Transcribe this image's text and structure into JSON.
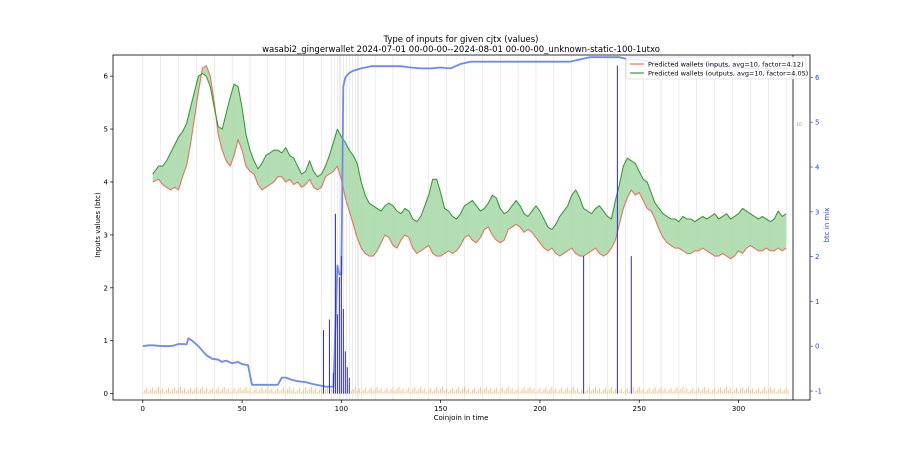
{
  "chart_data": {
    "type": "line",
    "title": "Type of inputs for given cjtx (values)",
    "subtitle": "wasabi2_gingerwallet 2024-07-01 00-00-00--2024-08-01 00-00-00_unknown-static-100-1utxo",
    "xlabel": "Coinjoin in time",
    "ylabel": "Inputs values (btc)",
    "ylabel_right": "btc in mix",
    "xlim": [
      -15,
      336
    ],
    "ylim": [
      -0.12,
      6.4
    ],
    "ylim_right": [
      -1.2,
      6.5
    ],
    "x_ticks": [
      0,
      50,
      100,
      150,
      200,
      250,
      300
    ],
    "y_ticks": [
      0,
      1,
      2,
      3,
      4,
      5,
      6
    ],
    "y_ticks_right": [
      -1,
      0,
      1,
      2,
      3,
      4,
      5,
      6
    ],
    "right_small_label": "10",
    "legend_position": "top-right",
    "colors": {
      "inputs": "#e8735f",
      "outputs": "#3a9a3a",
      "fill": "#a6d8a6",
      "mix": "#6f8be8",
      "spikes": "#2b2bd6",
      "tiny_bars": "#f0b76a",
      "vgrid": "#d9d9d9"
    },
    "series": [
      {
        "name": "Predicted wallets (inputs, avg=10, factor=4.12)",
        "x": [
          5,
          8,
          10,
          12,
          14,
          16,
          18,
          20,
          22,
          24,
          26,
          28,
          30,
          32,
          34,
          36,
          38,
          40,
          42,
          44,
          46,
          48,
          50,
          52,
          54,
          56,
          58,
          60,
          62,
          64,
          66,
          68,
          70,
          72,
          74,
          76,
          78,
          80,
          82,
          84,
          86,
          88,
          90,
          92,
          94,
          96,
          98,
          100,
          102,
          104,
          106,
          108,
          110,
          112,
          114,
          116,
          118,
          120,
          122,
          124,
          126,
          128,
          130,
          132,
          134,
          136,
          138,
          140,
          142,
          144,
          146,
          148,
          150,
          152,
          154,
          156,
          158,
          160,
          162,
          164,
          166,
          168,
          170,
          172,
          174,
          176,
          178,
          180,
          182,
          184,
          186,
          188,
          190,
          192,
          194,
          196,
          198,
          200,
          202,
          204,
          206,
          208,
          210,
          212,
          214,
          216,
          218,
          220,
          222,
          224,
          226,
          228,
          230,
          232,
          234,
          236,
          238,
          240,
          242,
          244,
          246,
          248,
          250,
          252,
          254,
          256,
          258,
          260,
          262,
          264,
          266,
          268,
          270,
          272,
          274,
          276,
          278,
          280,
          282,
          284,
          286,
          288,
          290,
          292,
          294,
          296,
          298,
          300,
          302,
          304,
          306,
          308,
          310,
          312,
          314,
          316,
          318,
          320,
          322,
          324
        ],
        "values": [
          4.0,
          4.05,
          3.95,
          3.9,
          3.85,
          3.9,
          3.85,
          4.1,
          4.3,
          4.7,
          5.2,
          5.7,
          6.15,
          6.2,
          6.0,
          5.5,
          4.9,
          4.6,
          4.4,
          4.3,
          4.5,
          4.8,
          4.6,
          4.3,
          4.2,
          4.15,
          3.95,
          3.85,
          3.9,
          3.95,
          4.0,
          4.1,
          4.1,
          4.0,
          4.05,
          3.95,
          4.0,
          3.9,
          3.95,
          4.05,
          3.9,
          3.85,
          3.9,
          4.1,
          4.15,
          4.2,
          4.3,
          4.05,
          3.7,
          3.45,
          3.2,
          2.95,
          2.75,
          2.65,
          2.6,
          2.6,
          2.7,
          2.85,
          3.0,
          2.95,
          2.8,
          2.75,
          2.9,
          3.0,
          2.95,
          2.75,
          2.65,
          2.7,
          2.75,
          2.8,
          2.65,
          2.6,
          2.6,
          2.65,
          2.7,
          2.65,
          2.7,
          2.8,
          2.95,
          3.0,
          2.9,
          2.85,
          2.95,
          3.1,
          3.15,
          3.0,
          2.9,
          2.85,
          2.9,
          3.1,
          3.15,
          3.2,
          3.15,
          3.05,
          3.1,
          3.05,
          2.95,
          2.85,
          2.75,
          2.7,
          2.75,
          2.65,
          2.6,
          2.65,
          2.7,
          2.75,
          2.65,
          2.6,
          2.6,
          2.65,
          2.7,
          2.75,
          2.65,
          2.6,
          2.65,
          2.75,
          2.9,
          3.2,
          3.5,
          3.7,
          3.85,
          3.75,
          3.8,
          3.65,
          3.5,
          3.45,
          3.3,
          3.1,
          2.95,
          2.85,
          2.8,
          2.75,
          2.75,
          2.7,
          2.65,
          2.65,
          2.7,
          2.7,
          2.75,
          2.7,
          2.65,
          2.6,
          2.6,
          2.65,
          2.6,
          2.55,
          2.6,
          2.7,
          2.65,
          2.75,
          2.8,
          2.75,
          2.7,
          2.7,
          2.75,
          2.7,
          2.7,
          2.75,
          2.7,
          2.75
        ]
      },
      {
        "name": "Predicted wallets (outputs, avg=10, factor=4.05)",
        "x": [
          5,
          8,
          10,
          12,
          14,
          16,
          18,
          20,
          22,
          24,
          26,
          28,
          30,
          32,
          34,
          36,
          38,
          40,
          42,
          44,
          46,
          48,
          50,
          52,
          54,
          56,
          58,
          60,
          62,
          64,
          66,
          68,
          70,
          72,
          74,
          76,
          78,
          80,
          82,
          84,
          86,
          88,
          90,
          92,
          94,
          96,
          98,
          100,
          102,
          104,
          106,
          108,
          110,
          112,
          114,
          116,
          118,
          120,
          122,
          124,
          126,
          128,
          130,
          132,
          134,
          136,
          138,
          140,
          142,
          144,
          146,
          148,
          150,
          152,
          154,
          156,
          158,
          160,
          162,
          164,
          166,
          168,
          170,
          172,
          174,
          176,
          178,
          180,
          182,
          184,
          186,
          188,
          190,
          192,
          194,
          196,
          198,
          200,
          202,
          204,
          206,
          208,
          210,
          212,
          214,
          216,
          218,
          220,
          222,
          224,
          226,
          228,
          230,
          232,
          234,
          236,
          238,
          240,
          242,
          244,
          246,
          248,
          250,
          252,
          254,
          256,
          258,
          260,
          262,
          264,
          266,
          268,
          270,
          272,
          274,
          276,
          278,
          280,
          282,
          284,
          286,
          288,
          290,
          292,
          294,
          296,
          298,
          300,
          302,
          304,
          306,
          308,
          310,
          312,
          314,
          316,
          318,
          320,
          322,
          324
        ],
        "values": [
          4.15,
          4.3,
          4.3,
          4.4,
          4.55,
          4.7,
          4.85,
          4.95,
          5.1,
          5.4,
          5.7,
          6.0,
          6.05,
          6.0,
          5.8,
          5.4,
          5.05,
          5.0,
          5.3,
          5.6,
          5.85,
          5.8,
          5.4,
          4.9,
          4.6,
          4.4,
          4.25,
          4.35,
          4.5,
          4.55,
          4.6,
          4.6,
          4.55,
          4.65,
          4.5,
          4.45,
          4.3,
          4.15,
          4.2,
          4.4,
          4.2,
          4.1,
          4.15,
          4.3,
          4.5,
          4.75,
          5.0,
          4.85,
          4.75,
          4.6,
          4.5,
          4.35,
          4.0,
          3.75,
          3.6,
          3.55,
          3.5,
          3.45,
          3.55,
          3.6,
          3.55,
          3.45,
          3.4,
          3.5,
          3.45,
          3.3,
          3.25,
          3.35,
          3.55,
          3.75,
          4.05,
          4.05,
          3.8,
          3.5,
          3.45,
          3.35,
          3.3,
          3.4,
          3.55,
          3.6,
          3.65,
          3.55,
          3.45,
          3.5,
          3.6,
          3.75,
          3.7,
          3.5,
          3.4,
          3.45,
          3.55,
          3.65,
          3.55,
          3.4,
          3.35,
          3.45,
          3.55,
          3.45,
          3.3,
          3.15,
          3.1,
          3.2,
          3.35,
          3.45,
          3.55,
          3.75,
          3.85,
          3.7,
          3.5,
          3.45,
          3.4,
          3.5,
          3.55,
          3.45,
          3.35,
          3.3,
          3.65,
          3.95,
          4.3,
          4.45,
          4.4,
          4.35,
          4.2,
          4.05,
          4.0,
          3.8,
          3.6,
          3.5,
          3.4,
          3.35,
          3.3,
          3.3,
          3.25,
          3.35,
          3.3,
          3.3,
          3.25,
          3.3,
          3.35,
          3.3,
          3.35,
          3.4,
          3.3,
          3.35,
          3.4,
          3.3,
          3.35,
          3.4,
          3.5,
          3.45,
          3.4,
          3.35,
          3.3,
          3.35,
          3.3,
          3.25,
          3.3,
          3.45,
          3.35,
          3.4
        ]
      },
      {
        "axis": "right",
        "x": [
          0,
          3,
          5,
          8,
          12,
          15,
          18,
          20,
          22,
          23,
          25,
          28,
          30,
          32,
          35,
          38,
          40,
          42,
          45,
          48,
          50,
          53,
          55,
          58,
          60,
          63,
          66,
          68,
          70,
          72,
          75,
          78,
          82,
          86,
          90,
          92,
          94,
          96,
          97,
          98,
          99,
          100,
          101,
          102,
          104,
          106,
          110,
          115,
          120,
          125,
          130,
          135,
          140,
          145,
          150,
          155,
          160,
          165,
          170,
          175,
          180,
          185,
          190,
          195,
          200,
          205,
          210,
          215,
          220,
          225,
          230,
          235,
          240,
          245,
          250,
          255,
          260,
          265,
          270,
          275,
          280,
          285,
          290,
          295,
          300,
          305,
          310,
          315,
          320,
          325
        ],
        "values": [
          0.0,
          0.02,
          0.02,
          0.01,
          0.0,
          0.01,
          0.05,
          0.05,
          0.04,
          0.18,
          0.12,
          0.0,
          -0.1,
          -0.2,
          -0.28,
          -0.3,
          -0.35,
          -0.32,
          -0.38,
          -0.35,
          -0.4,
          -0.42,
          -0.86,
          -0.86,
          -0.86,
          -0.86,
          -0.86,
          -0.86,
          -0.7,
          -0.7,
          -0.75,
          -0.78,
          -0.8,
          -0.85,
          -0.88,
          -0.9,
          -0.9,
          -0.9,
          0.4,
          1.8,
          1.6,
          1.6,
          5.8,
          6.0,
          6.1,
          6.15,
          6.2,
          6.25,
          6.25,
          6.25,
          6.25,
          6.22,
          6.2,
          6.2,
          6.22,
          6.2,
          6.3,
          6.35,
          6.35,
          6.35,
          6.35,
          6.35,
          6.35,
          6.35,
          6.35,
          6.35,
          6.35,
          6.35,
          6.4,
          6.45,
          6.45,
          6.45,
          6.45,
          6.4,
          6.4,
          6.35,
          6.35,
          6.35,
          6.35,
          6.3,
          6.3,
          6.3,
          6.25,
          6.22,
          6.22,
          6.2,
          6.2,
          6.2,
          6.2,
          6.2
        ]
      }
    ],
    "spikes": {
      "x": [
        91,
        94,
        96,
        97,
        98,
        99,
        100,
        101,
        102,
        103,
        104,
        222,
        239,
        246
      ],
      "values": [
        1.2,
        1.4,
        0.4,
        3.4,
        1.5,
        2.2,
        2.6,
        1.6,
        0.8,
        0.5,
        0.3,
        2.6,
        6.2,
        2.6
      ]
    }
  }
}
